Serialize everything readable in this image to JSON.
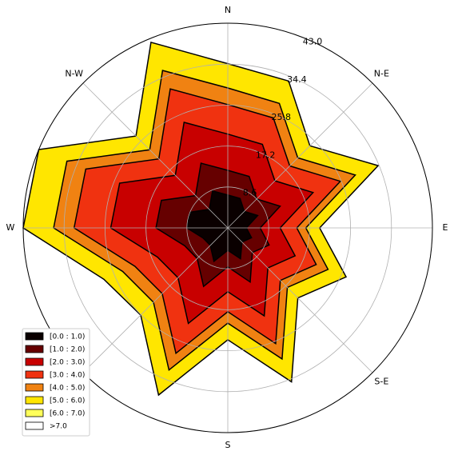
{
  "chart_data": {
    "type": "windrose",
    "categories": [
      "N",
      null,
      "N-E",
      null,
      "E",
      null,
      "S-E",
      null,
      "S",
      null,
      null,
      null,
      "W",
      null,
      "N-W",
      null
    ],
    "rlim": [
      0,
      43
    ],
    "rticks": [
      8.6,
      17.2,
      25.8,
      34.4,
      {
        "value": 43,
        "label": "43.0"
      }
    ],
    "grid": true,
    "legend": "lower left",
    "series": [
      {
        "name": "[0.0 : 1.0)",
        "color": "#0a0000",
        "values": [
          6.9,
          6.7,
          4.9,
          6.8,
          3.9,
          5.4,
          4.2,
          7.0,
          4.7,
          7.6,
          5.2,
          5.6,
          8.6,
          8.6,
          5.5,
          8.4
        ]
      },
      {
        "name": "[1.0 : 2.0)",
        "color": "#660000",
        "values": [
          5.2,
          5.0,
          3.7,
          5.1,
          2.9,
          4.0,
          3.1,
          5.3,
          3.5,
          5.7,
          3.9,
          4.2,
          6.5,
          6.5,
          4.1,
          6.3
        ]
      },
      {
        "name": "[2.0 : 3.0)",
        "color": "#c80000",
        "values": [
          7.6,
          7.3,
          5.4,
          7.5,
          4.2,
          5.9,
          4.6,
          7.7,
          5.2,
          8.4,
          5.7,
          6.2,
          9.5,
          9.5,
          6.0,
          9.3
        ]
      },
      {
        "name": "[3.0 : 4.0)",
        "color": "#f03210",
        "values": [
          6.2,
          6.0,
          4.4,
          6.2,
          3.5,
          4.8,
          3.7,
          6.3,
          4.2,
          6.8,
          4.7,
          5.1,
          7.7,
          7.7,
          4.9,
          7.6
        ]
      },
      {
        "name": "[4.0 : 5.0)",
        "color": "#f08212",
        "values": [
          3.5,
          3.3,
          2.4,
          3.4,
          1.9,
          2.7,
          2.1,
          3.5,
          2.4,
          3.8,
          2.6,
          2.8,
          4.3,
          4.3,
          2.7,
          4.2
        ]
      },
      {
        "name": "[5.0 : 6.0)",
        "color": "#ffe600",
        "values": [
          5.1,
          5.1,
          3.6,
          5.2,
          2.9,
          4.1,
          3.1,
          5.2,
          3.5,
          5.7,
          3.8,
          4.3,
          6.4,
          6.4,
          4.1,
          6.4
        ]
      },
      {
        "name": "[6.0 : 7.0)",
        "color": "#ffff5a",
        "values": [
          0,
          0,
          0,
          0,
          0,
          0,
          0,
          0,
          0,
          0,
          0,
          0,
          0,
          0,
          0,
          0
        ]
      },
      {
        "name": ">7.0",
        "color": "#ffffff",
        "values": [
          0,
          0,
          0,
          0,
          0,
          0,
          0,
          0,
          0,
          0,
          0,
          0,
          0,
          0,
          0,
          0
        ]
      }
    ]
  }
}
